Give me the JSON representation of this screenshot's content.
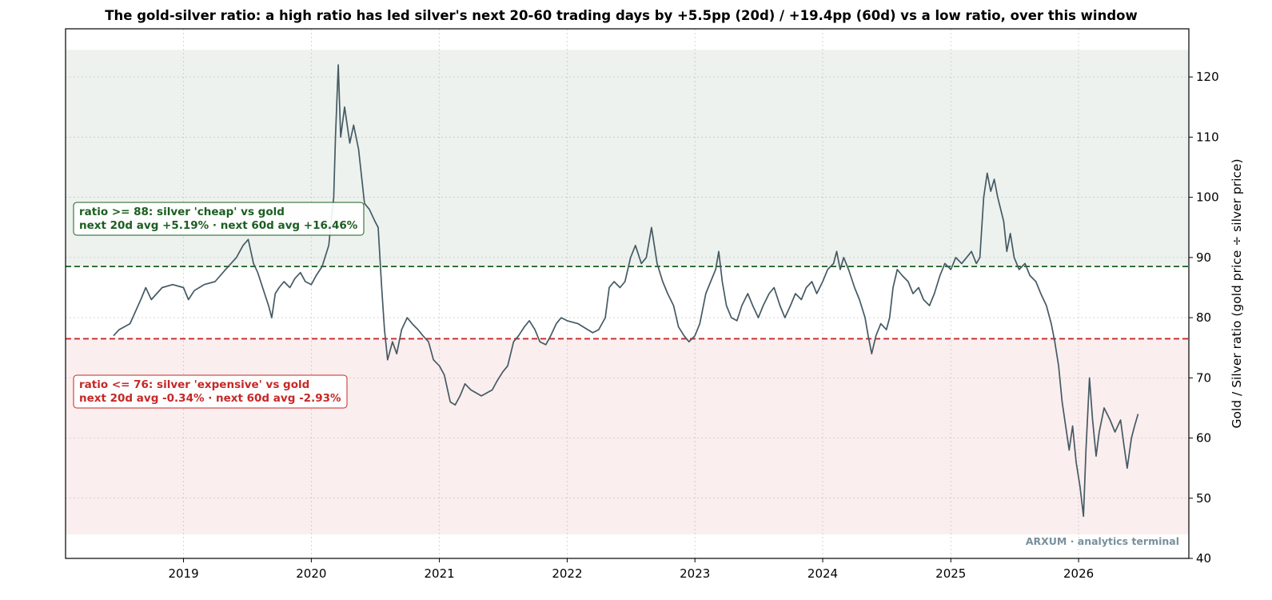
{
  "chart_data": {
    "type": "line",
    "title": "The gold-silver ratio: a high ratio has led silver's next 20-60 trading days by +5.5pp (20d) / +19.4pp (60d) vs a low ratio, over this window",
    "xlabel": "",
    "ylabel": "Gold / Silver ratio (gold price ÷ silver price)",
    "x_ticks": [
      "2019",
      "2020",
      "2021",
      "2022",
      "2023",
      "2024",
      "2025",
      "2026"
    ],
    "y_ticks": [
      40,
      50,
      60,
      70,
      80,
      90,
      100,
      110,
      120
    ],
    "ylim": [
      40,
      128
    ],
    "xlim": [
      "2018-01-29",
      "2026-11-12"
    ],
    "y_axis_side": "right",
    "grid": true,
    "line_color": "#455a64",
    "series": [
      {
        "points": [
          [
            "2018-06-15",
            77.0
          ],
          [
            "2018-07-01",
            78.0
          ],
          [
            "2018-08-01",
            79.0
          ],
          [
            "2018-09-01",
            83.0
          ],
          [
            "2018-09-15",
            85.0
          ],
          [
            "2018-10-01",
            83.0
          ],
          [
            "2018-11-01",
            85.0
          ],
          [
            "2018-12-01",
            85.5
          ],
          [
            "2019-01-01",
            85.0
          ],
          [
            "2019-01-15",
            83.0
          ],
          [
            "2019-02-01",
            84.5
          ],
          [
            "2019-03-01",
            85.5
          ],
          [
            "2019-04-01",
            86.0
          ],
          [
            "2019-05-01",
            88.0
          ],
          [
            "2019-06-01",
            90.0
          ],
          [
            "2019-06-20",
            92.0
          ],
          [
            "2019-07-05",
            93.0
          ],
          [
            "2019-07-20",
            89.0
          ],
          [
            "2019-08-01",
            87.5
          ],
          [
            "2019-08-15",
            85.0
          ],
          [
            "2019-09-01",
            82.0
          ],
          [
            "2019-09-10",
            80.0
          ],
          [
            "2019-09-20",
            84.0
          ],
          [
            "2019-10-01",
            85.0
          ],
          [
            "2019-10-15",
            86.0
          ],
          [
            "2019-11-01",
            85.0
          ],
          [
            "2019-11-15",
            86.5
          ],
          [
            "2019-12-01",
            87.5
          ],
          [
            "2019-12-15",
            86.0
          ],
          [
            "2020-01-01",
            85.5
          ],
          [
            "2020-01-15",
            87.0
          ],
          [
            "2020-02-01",
            88.5
          ],
          [
            "2020-02-20",
            92.0
          ],
          [
            "2020-03-05",
            100.0
          ],
          [
            "2020-03-10",
            110.0
          ],
          [
            "2020-03-18",
            122.0
          ],
          [
            "2020-03-25",
            110.0
          ],
          [
            "2020-04-05",
            115.0
          ],
          [
            "2020-04-20",
            109.0
          ],
          [
            "2020-05-01",
            112.0
          ],
          [
            "2020-05-15",
            108.0
          ],
          [
            "2020-06-01",
            99.0
          ],
          [
            "2020-06-15",
            98.0
          ],
          [
            "2020-07-01",
            96.0
          ],
          [
            "2020-07-10",
            95.0
          ],
          [
            "2020-07-20",
            85.0
          ],
          [
            "2020-07-28",
            78.0
          ],
          [
            "2020-08-06",
            73.0
          ],
          [
            "2020-08-20",
            76.0
          ],
          [
            "2020-09-01",
            74.0
          ],
          [
            "2020-09-15",
            78.0
          ],
          [
            "2020-10-01",
            80.0
          ],
          [
            "2020-10-15",
            79.0
          ],
          [
            "2020-11-01",
            78.0
          ],
          [
            "2020-11-15",
            77.0
          ],
          [
            "2020-12-01",
            76.0
          ],
          [
            "2020-12-15",
            73.0
          ],
          [
            "2021-01-01",
            72.0
          ],
          [
            "2021-01-15",
            70.5
          ],
          [
            "2021-02-01",
            66.0
          ],
          [
            "2021-02-15",
            65.5
          ],
          [
            "2021-03-01",
            67.0
          ],
          [
            "2021-03-15",
            69.0
          ],
          [
            "2021-04-01",
            68.0
          ],
          [
            "2021-05-01",
            67.0
          ],
          [
            "2021-06-01",
            68.0
          ],
          [
            "2021-06-15",
            69.5
          ],
          [
            "2021-07-01",
            71.0
          ],
          [
            "2021-07-15",
            72.0
          ],
          [
            "2021-08-01",
            76.0
          ],
          [
            "2021-08-15",
            77.0
          ],
          [
            "2021-09-01",
            78.5
          ],
          [
            "2021-09-15",
            79.5
          ],
          [
            "2021-10-01",
            78.0
          ],
          [
            "2021-10-15",
            76.0
          ],
          [
            "2021-11-01",
            75.5
          ],
          [
            "2021-11-15",
            77.0
          ],
          [
            "2021-12-01",
            79.0
          ],
          [
            "2021-12-15",
            80.0
          ],
          [
            "2022-01-01",
            79.5
          ],
          [
            "2022-02-01",
            79.0
          ],
          [
            "2022-03-01",
            78.0
          ],
          [
            "2022-03-15",
            77.5
          ],
          [
            "2022-04-01",
            78.0
          ],
          [
            "2022-04-20",
            80.0
          ],
          [
            "2022-05-01",
            85.0
          ],
          [
            "2022-05-15",
            86.0
          ],
          [
            "2022-06-01",
            85.0
          ],
          [
            "2022-06-15",
            86.0
          ],
          [
            "2022-07-01",
            90.0
          ],
          [
            "2022-07-15",
            92.0
          ],
          [
            "2022-08-01",
            89.0
          ],
          [
            "2022-08-15",
            90.0
          ],
          [
            "2022-08-30",
            95.0
          ],
          [
            "2022-09-15",
            89.0
          ],
          [
            "2022-10-01",
            86.0
          ],
          [
            "2022-10-15",
            84.0
          ],
          [
            "2022-11-01",
            82.0
          ],
          [
            "2022-11-15",
            78.5
          ],
          [
            "2022-12-01",
            77.0
          ],
          [
            "2022-12-15",
            76.0
          ],
          [
            "2023-01-01",
            77.0
          ],
          [
            "2023-01-15",
            79.0
          ],
          [
            "2023-02-01",
            84.0
          ],
          [
            "2023-02-15",
            86.0
          ],
          [
            "2023-03-01",
            88.0
          ],
          [
            "2023-03-10",
            91.0
          ],
          [
            "2023-03-20",
            86.0
          ],
          [
            "2023-04-01",
            82.0
          ],
          [
            "2023-04-15",
            80.0
          ],
          [
            "2023-05-01",
            79.5
          ],
          [
            "2023-05-15",
            82.0
          ],
          [
            "2023-06-01",
            84.0
          ],
          [
            "2023-06-15",
            82.0
          ],
          [
            "2023-07-01",
            80.0
          ],
          [
            "2023-07-15",
            82.0
          ],
          [
            "2023-08-01",
            84.0
          ],
          [
            "2023-08-15",
            85.0
          ],
          [
            "2023-09-01",
            82.0
          ],
          [
            "2023-09-15",
            80.0
          ],
          [
            "2023-10-01",
            82.0
          ],
          [
            "2023-10-15",
            84.0
          ],
          [
            "2023-11-01",
            83.0
          ],
          [
            "2023-11-15",
            85.0
          ],
          [
            "2023-12-01",
            86.0
          ],
          [
            "2023-12-15",
            84.0
          ],
          [
            "2024-01-01",
            86.0
          ],
          [
            "2024-01-15",
            88.0
          ],
          [
            "2024-02-01",
            89.0
          ],
          [
            "2024-02-10",
            91.0
          ],
          [
            "2024-02-20",
            88.0
          ],
          [
            "2024-03-01",
            90.0
          ],
          [
            "2024-03-15",
            88.0
          ],
          [
            "2024-04-01",
            85.0
          ],
          [
            "2024-04-15",
            83.0
          ],
          [
            "2024-05-01",
            80.0
          ],
          [
            "2024-05-10",
            77.0
          ],
          [
            "2024-05-20",
            74.0
          ],
          [
            "2024-06-01",
            77.0
          ],
          [
            "2024-06-15",
            79.0
          ],
          [
            "2024-07-01",
            78.0
          ],
          [
            "2024-07-10",
            80.0
          ],
          [
            "2024-07-20",
            85.0
          ],
          [
            "2024-08-01",
            88.0
          ],
          [
            "2024-08-15",
            87.0
          ],
          [
            "2024-09-01",
            86.0
          ],
          [
            "2024-09-15",
            84.0
          ],
          [
            "2024-10-01",
            85.0
          ],
          [
            "2024-10-15",
            83.0
          ],
          [
            "2024-11-01",
            82.0
          ],
          [
            "2024-11-15",
            84.0
          ],
          [
            "2024-12-01",
            87.0
          ],
          [
            "2024-12-15",
            89.0
          ],
          [
            "2025-01-01",
            88.0
          ],
          [
            "2025-01-15",
            90.0
          ],
          [
            "2025-02-01",
            89.0
          ],
          [
            "2025-02-15",
            90.0
          ],
          [
            "2025-03-01",
            91.0
          ],
          [
            "2025-03-15",
            89.0
          ],
          [
            "2025-03-25",
            90.0
          ],
          [
            "2025-04-05",
            100.0
          ],
          [
            "2025-04-15",
            104.0
          ],
          [
            "2025-04-25",
            101.0
          ],
          [
            "2025-05-05",
            103.0
          ],
          [
            "2025-05-15",
            100.0
          ],
          [
            "2025-06-01",
            96.0
          ],
          [
            "2025-06-10",
            91.0
          ],
          [
            "2025-06-20",
            94.0
          ],
          [
            "2025-07-01",
            90.0
          ],
          [
            "2025-07-15",
            88.0
          ],
          [
            "2025-08-01",
            89.0
          ],
          [
            "2025-08-15",
            87.0
          ],
          [
            "2025-09-01",
            86.0
          ],
          [
            "2025-09-15",
            84.0
          ],
          [
            "2025-10-01",
            82.0
          ],
          [
            "2025-10-15",
            79.0
          ],
          [
            "2025-10-25",
            76.0
          ],
          [
            "2025-11-05",
            72.0
          ],
          [
            "2025-11-15",
            66.0
          ],
          [
            "2025-11-25",
            62.0
          ],
          [
            "2025-12-05",
            58.0
          ],
          [
            "2025-12-15",
            62.0
          ],
          [
            "2025-12-25",
            56.0
          ],
          [
            "2026-01-05",
            52.0
          ],
          [
            "2026-01-15",
            47.0
          ],
          [
            "2026-01-22",
            58.0
          ],
          [
            "2026-02-01",
            70.0
          ],
          [
            "2026-02-10",
            63.0
          ],
          [
            "2026-02-20",
            57.0
          ],
          [
            "2026-03-01",
            61.0
          ],
          [
            "2026-03-15",
            65.0
          ],
          [
            "2026-04-01",
            63.0
          ],
          [
            "2026-04-15",
            61.0
          ],
          [
            "2026-05-01",
            63.0
          ],
          [
            "2026-05-10",
            59.0
          ],
          [
            "2026-05-20",
            55.0
          ],
          [
            "2026-06-01",
            60.0
          ],
          [
            "2026-06-10",
            62.0
          ],
          [
            "2026-06-20",
            64.0
          ]
        ]
      }
    ],
    "bands": [
      {
        "name": "high-ratio-zone",
        "from": 88.5,
        "to": 124.5,
        "color": "#1b5e20",
        "opacity": 0.08
      },
      {
        "name": "low-ratio-zone",
        "from": 44,
        "to": 76.5,
        "color": "#c62828",
        "opacity": 0.08
      }
    ],
    "thresholds": [
      {
        "name": "high-threshold",
        "value": 88.5,
        "color": "#1b5e20"
      },
      {
        "name": "low-threshold",
        "value": 76.5,
        "color": "#c62828"
      }
    ],
    "annotations": [
      {
        "name": "high-ratio-annotation",
        "color": "#1b5e20",
        "lines": [
          "ratio >= 88: silver 'cheap' vs gold",
          "next 20d avg +5.19% · next 60d avg +16.46%"
        ]
      },
      {
        "name": "low-ratio-annotation",
        "color": "#c62828",
        "lines": [
          "ratio <= 76: silver 'expensive' vs gold",
          "next 20d avg -0.34% · next 60d avg -2.93%"
        ]
      }
    ],
    "watermark": "ARXUM · analytics terminal"
  }
}
